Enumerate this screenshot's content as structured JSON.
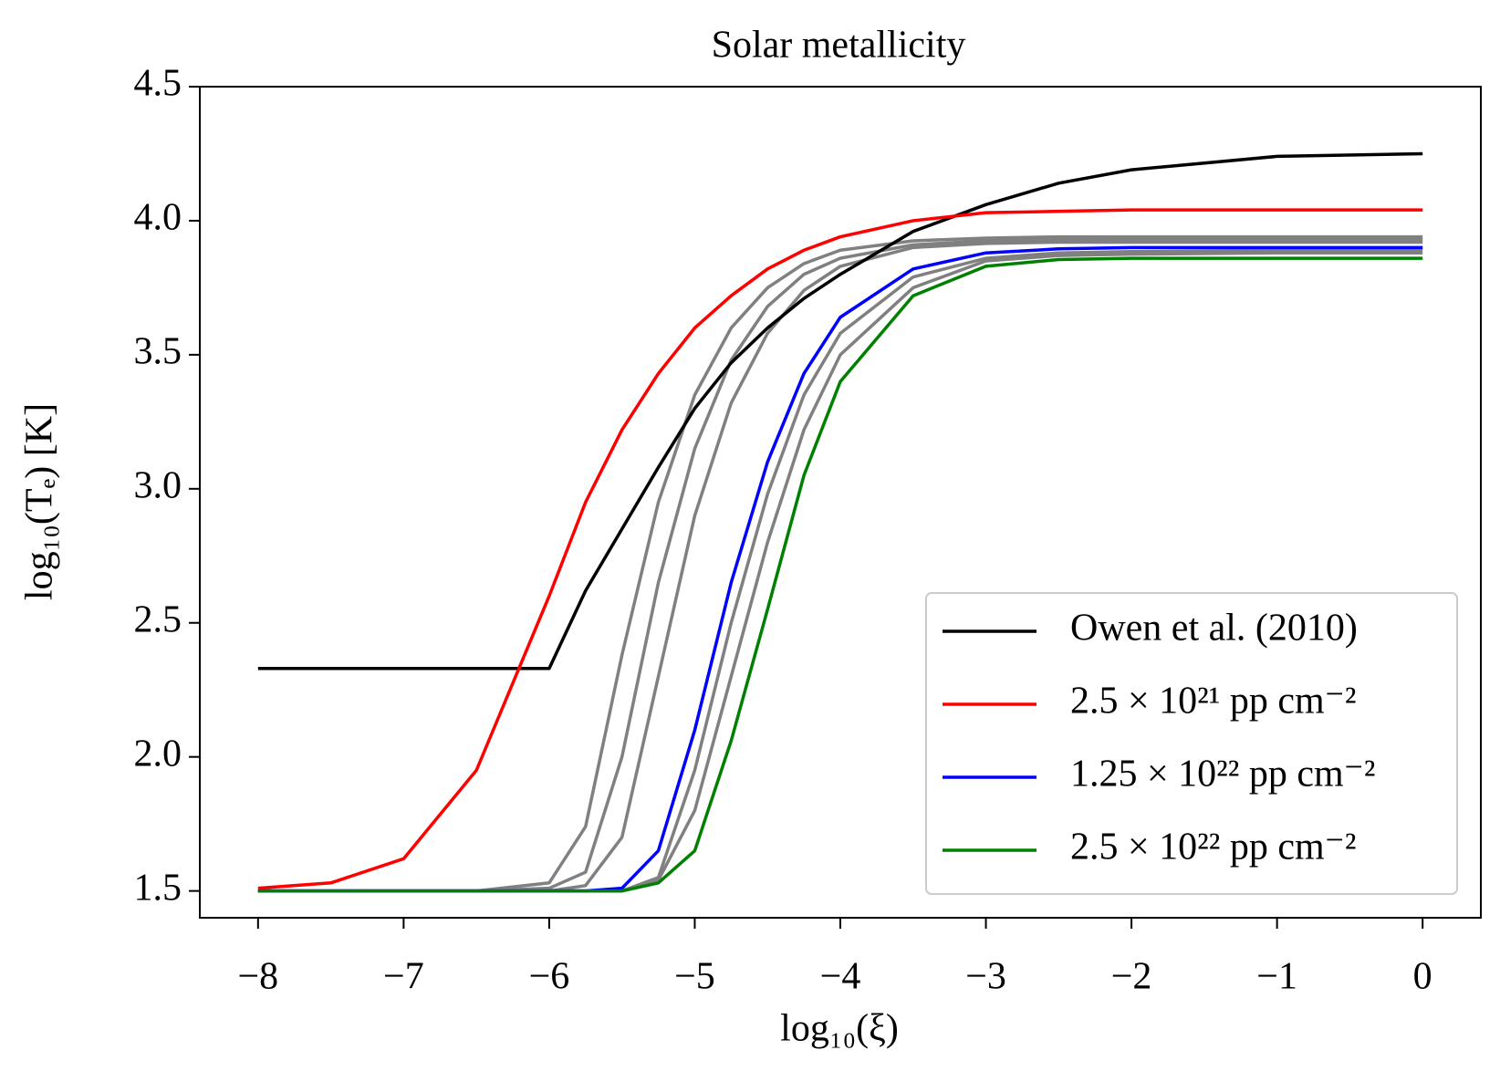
{
  "chart_data": {
    "type": "line",
    "title": "Solar metallicity",
    "x_label": "log₁₀(ξ)",
    "y_label": "log₁₀(Tₑ) [K]",
    "x": [
      -8,
      -7.5,
      -7,
      -6.5,
      -6,
      -5.75,
      -5.5,
      -5.25,
      -5,
      -4.75,
      -4.5,
      -4.25,
      -4,
      -3.5,
      -3,
      -2.5,
      -2,
      -1,
      0
    ],
    "xlim": [
      -8.4,
      0.4
    ],
    "ylim": [
      1.4,
      4.5
    ],
    "xticks": [
      {
        "value": -8,
        "label": "−8"
      },
      {
        "value": -7,
        "label": "−7"
      },
      {
        "value": -6,
        "label": "−6"
      },
      {
        "value": -5,
        "label": "−5"
      },
      {
        "value": -4,
        "label": "−4"
      },
      {
        "value": -3,
        "label": "−3"
      },
      {
        "value": -2,
        "label": "−2"
      },
      {
        "value": -1,
        "label": "−1"
      },
      0
    ],
    "yticks": [
      1.5,
      {
        "value": 2,
        "label": "2.0"
      },
      2.5,
      {
        "value": 3,
        "label": "3.0"
      },
      3.5,
      {
        "value": 4,
        "label": "4.0"
      },
      4.5
    ],
    "grid": false,
    "legend": "lower right",
    "series": [
      {
        "color": "#808080",
        "values": [
          1.5,
          1.5,
          1.5,
          1.5,
          1.53,
          1.74,
          2.38,
          2.95,
          3.35,
          3.6,
          3.75,
          3.84,
          3.89,
          3.925,
          3.935,
          3.94,
          3.94,
          3.94,
          3.94
        ]
      },
      {
        "color": "#808080",
        "values": [
          1.5,
          1.5,
          1.5,
          1.5,
          1.51,
          1.57,
          2.0,
          2.65,
          3.15,
          3.48,
          3.68,
          3.8,
          3.86,
          3.91,
          3.925,
          3.93,
          3.93,
          3.93,
          3.93
        ]
      },
      {
        "color": "#808080",
        "values": [
          1.5,
          1.5,
          1.5,
          1.5,
          1.5,
          1.52,
          1.7,
          2.3,
          2.9,
          3.32,
          3.58,
          3.74,
          3.83,
          3.9,
          3.915,
          3.92,
          3.92,
          3.92,
          3.92
        ]
      },
      {
        "color": "#808080",
        "values": [
          1.5,
          1.5,
          1.5,
          1.5,
          1.5,
          1.5,
          1.5,
          1.55,
          1.95,
          2.5,
          2.98,
          3.35,
          3.58,
          3.79,
          3.86,
          3.88,
          3.885,
          3.89,
          3.89
        ]
      },
      {
        "color": "#808080",
        "values": [
          1.5,
          1.5,
          1.5,
          1.5,
          1.5,
          1.5,
          1.5,
          1.54,
          1.8,
          2.3,
          2.8,
          3.22,
          3.5,
          3.75,
          3.85,
          3.87,
          3.875,
          3.88,
          3.88
        ]
      },
      {
        "name": "Owen et al. (2010)",
        "color": "#000000",
        "values": [
          2.33,
          2.33,
          2.33,
          2.33,
          2.33,
          2.62,
          2.85,
          3.08,
          3.3,
          3.47,
          3.6,
          3.71,
          3.8,
          3.96,
          4.06,
          4.14,
          4.19,
          4.24,
          4.25
        ]
      },
      {
        "name": "2.5 × 10²¹ pp cm⁻²",
        "color": "#ff0000",
        "values": [
          1.51,
          1.53,
          1.62,
          1.95,
          2.6,
          2.95,
          3.22,
          3.43,
          3.6,
          3.72,
          3.82,
          3.89,
          3.94,
          4.0,
          4.03,
          4.035,
          4.04,
          4.04,
          4.04
        ]
      },
      {
        "name": "1.25 × 10²² pp cm⁻²",
        "color": "#0000ff",
        "values": [
          1.5,
          1.5,
          1.5,
          1.5,
          1.5,
          1.5,
          1.51,
          1.65,
          2.1,
          2.65,
          3.1,
          3.43,
          3.64,
          3.82,
          3.88,
          3.895,
          3.9,
          3.9,
          3.9
        ]
      },
      {
        "name": "2.5 × 10²² pp cm⁻²",
        "color": "#008000",
        "values": [
          1.5,
          1.5,
          1.5,
          1.5,
          1.5,
          1.5,
          1.5,
          1.53,
          1.65,
          2.06,
          2.55,
          3.05,
          3.4,
          3.72,
          3.83,
          3.855,
          3.86,
          3.86,
          3.86
        ]
      }
    ]
  }
}
